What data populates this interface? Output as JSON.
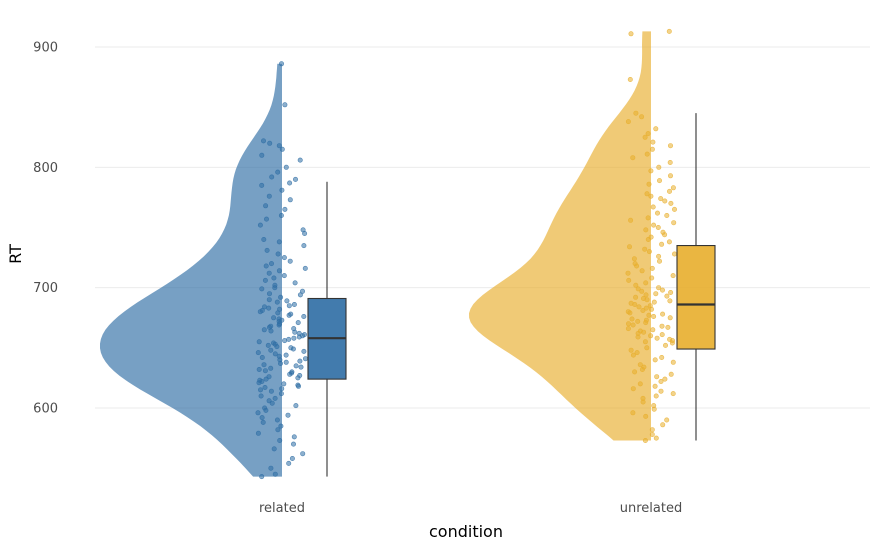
{
  "chart_data": {
    "type": "raincloud",
    "xlabel": "condition",
    "ylabel": "RT",
    "ylim": [
      535,
      918
    ],
    "yticks": [
      600,
      700,
      800,
      900
    ],
    "categories": [
      "related",
      "unrelated"
    ],
    "grid": true,
    "series": [
      {
        "category": "related",
        "color": "#2E6DA4",
        "box": {
          "min": 543,
          "q1": 624,
          "median": 658,
          "q3": 691,
          "max": 788
        },
        "outliers": [],
        "density_y_range": [
          543,
          886
        ],
        "density_peak_y": 655,
        "points_y": [
          886,
          852,
          822,
          820,
          818,
          815,
          810,
          806,
          800,
          796,
          792,
          790,
          787,
          785,
          781,
          776,
          773,
          768,
          765,
          760,
          757,
          752,
          748,
          745,
          740,
          738,
          735,
          731,
          728,
          725,
          722,
          720,
          718,
          716,
          714,
          712,
          710,
          708,
          706,
          704,
          702,
          700,
          699,
          697,
          695,
          694,
          692,
          690,
          689,
          688,
          686,
          685,
          684,
          683,
          682,
          681,
          680,
          679,
          678,
          677,
          676,
          675,
          674,
          673,
          672,
          671,
          670,
          669,
          668,
          667,
          666,
          665,
          664,
          663,
          662,
          661,
          660,
          659,
          658,
          657,
          656,
          655,
          654,
          653,
          652,
          651,
          650,
          649,
          648,
          647,
          646,
          645,
          644,
          643,
          642,
          641,
          640,
          639,
          638,
          637,
          636,
          635,
          634,
          633,
          632,
          631,
          630,
          629,
          628,
          627,
          626,
          625,
          624,
          623,
          622,
          621,
          620,
          619,
          618,
          617,
          616,
          615,
          614,
          612,
          610,
          608,
          606,
          604,
          602,
          600,
          598,
          596,
          594,
          592,
          590,
          588,
          585,
          582,
          579,
          576,
          573,
          570,
          566,
          562,
          558,
          554,
          550,
          545,
          543
        ]
      },
      {
        "category": "unrelated",
        "color": "#E8AE2C",
        "box": {
          "min": 573,
          "q1": 649,
          "median": 686,
          "q3": 735,
          "max": 845
        },
        "outliers": [],
        "density_y_range": [
          573,
          913
        ],
        "density_peak_y": 675,
        "points_y": [
          913,
          911,
          873,
          845,
          842,
          838,
          832,
          828,
          825,
          821,
          818,
          815,
          811,
          808,
          804,
          800,
          797,
          793,
          789,
          786,
          783,
          780,
          778,
          776,
          774,
          772,
          770,
          767,
          765,
          762,
          760,
          758,
          756,
          754,
          752,
          750,
          748,
          746,
          744,
          742,
          740,
          738,
          736,
          734,
          732,
          730,
          728,
          726,
          724,
          722,
          720,
          718,
          716,
          714,
          712,
          710,
          708,
          706,
          704,
          702,
          700,
          699,
          698,
          697,
          696,
          695,
          694,
          693,
          692,
          691,
          690,
          689,
          688,
          687,
          686,
          685,
          684,
          683,
          682,
          681,
          680,
          679,
          678,
          677,
          676,
          675,
          674,
          673,
          672,
          671,
          670,
          669,
          668,
          667,
          666,
          665,
          664,
          663,
          662,
          661,
          660,
          659,
          658,
          657,
          656,
          655,
          654,
          652,
          650,
          648,
          646,
          644,
          642,
          640,
          638,
          636,
          634,
          632,
          630,
          628,
          626,
          624,
          622,
          620,
          618,
          616,
          614,
          612,
          610,
          608,
          605,
          602,
          599,
          596,
          593,
          590,
          586,
          582,
          578,
          575,
          573
        ]
      }
    ]
  }
}
